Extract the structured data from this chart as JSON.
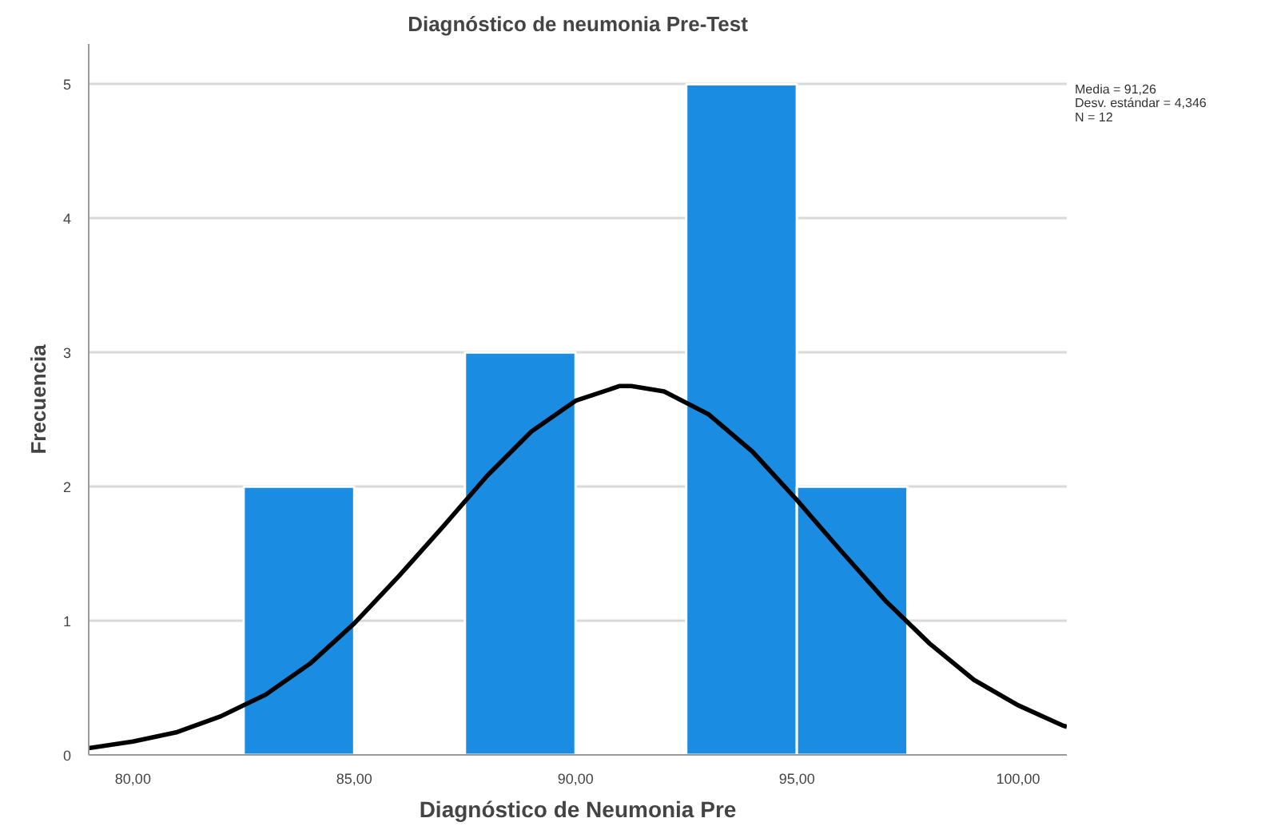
{
  "chart_data": {
    "type": "histogram",
    "title": "Diagnóstico de neumonia Pre-Test",
    "xlabel": "Diagnóstico de Neumonia Pre",
    "ylabel": "Frecuencia",
    "bins": [
      82.5,
      85,
      87.5,
      90,
      92.5,
      95,
      97.5
    ],
    "series": [
      {
        "color": "#1a8de3",
        "values": [
          2,
          0,
          3,
          0,
          5,
          2
        ]
      },
      {
        "type": "line",
        "color": "#000000",
        "x": [
          79,
          80,
          81,
          82,
          83,
          84,
          85,
          86,
          87,
          88,
          89,
          90,
          91,
          91.26,
          92,
          93,
          94,
          95,
          96,
          97,
          98,
          99,
          100,
          101,
          101.1
        ],
        "values": [
          0.05,
          0.1,
          0.17,
          0.29,
          0.45,
          0.68,
          0.98,
          1.33,
          1.7,
          2.08,
          2.41,
          2.64,
          2.75,
          2.75,
          2.71,
          2.54,
          2.26,
          1.9,
          1.52,
          1.15,
          0.83,
          0.56,
          0.37,
          0.22,
          0.21
        ]
      }
    ],
    "xlim": [
      79,
      101.1
    ],
    "ylim": [
      0,
      5.3
    ],
    "xticks": [
      {
        "value": 80,
        "label": "80,00"
      },
      {
        "value": 85,
        "label": "85,00"
      },
      {
        "value": 90,
        "label": "90,00"
      },
      {
        "value": 95,
        "label": "95,00"
      },
      {
        "value": 100,
        "label": "100,00"
      }
    ],
    "yticks": [
      0,
      1,
      2,
      3,
      4,
      5
    ],
    "grid": "y",
    "line_style": "solid",
    "marker": "none",
    "annotations": [
      "Media = 91,26",
      "Desv. estándar = 4,346",
      "N = 12"
    ]
  }
}
